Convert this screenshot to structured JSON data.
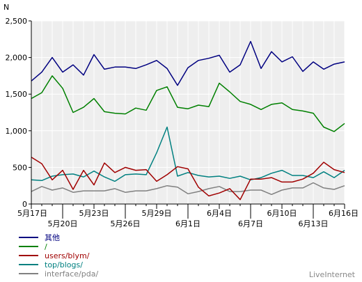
{
  "chart_data": {
    "type": "line",
    "ylabel": "N",
    "ylim": [
      0,
      2500
    ],
    "yticks": [
      0,
      500,
      1000,
      1500,
      2000,
      2500
    ],
    "ytick_labels": [
      "0",
      "500",
      "1,000",
      "1,500",
      "2,000",
      "2,500"
    ],
    "grid": true,
    "x": [
      "5月17日",
      "5月18日",
      "5月19日",
      "5月20日",
      "5月21日",
      "5月22日",
      "5月23日",
      "5月24日",
      "5月25日",
      "5月26日",
      "5月27日",
      "5月28日",
      "5月29日",
      "5月30日",
      "5月31日",
      "6月1日",
      "6月2日",
      "6月3日",
      "6月4日",
      "6月5日",
      "6月6日",
      "6月7日",
      "6月8日",
      "6月9日",
      "6月10日",
      "6月11日",
      "6月12日",
      "6月13日",
      "6月14日",
      "6月15日",
      "6月16日"
    ],
    "xtick_labels": [
      {
        "index": 0,
        "label": "5月17日",
        "row": 1
      },
      {
        "index": 3,
        "label": "5月20日",
        "row": 2
      },
      {
        "index": 6,
        "label": "5月23日",
        "row": 1
      },
      {
        "index": 9,
        "label": "5月26日",
        "row": 2
      },
      {
        "index": 12,
        "label": "5月29日",
        "row": 1
      },
      {
        "index": 15,
        "label": "6月1日",
        "row": 2
      },
      {
        "index": 18,
        "label": "6月4日",
        "row": 1
      },
      {
        "index": 21,
        "label": "6月7日",
        "row": 2
      },
      {
        "index": 24,
        "label": "6月10日",
        "row": 1
      },
      {
        "index": 27,
        "label": "6月13日",
        "row": 2
      },
      {
        "index": 30,
        "label": "6月16日",
        "row": 1
      }
    ],
    "series": [
      {
        "name": "其他",
        "color": "#000080",
        "values": [
          1680,
          1800,
          2000,
          1800,
          1900,
          1760,
          2040,
          1840,
          1870,
          1870,
          1850,
          1900,
          1960,
          1850,
          1620,
          1860,
          1960,
          1990,
          2030,
          1800,
          1900,
          2220,
          1850,
          2080,
          1940,
          2010,
          1810,
          1940,
          1840,
          1910,
          1940
        ]
      },
      {
        "name": "/",
        "color": "#008000",
        "values": [
          1440,
          1520,
          1750,
          1580,
          1250,
          1320,
          1440,
          1260,
          1240,
          1230,
          1310,
          1280,
          1550,
          1600,
          1320,
          1300,
          1350,
          1330,
          1650,
          1530,
          1400,
          1360,
          1290,
          1360,
          1380,
          1290,
          1270,
          1240,
          1050,
          990,
          1100
        ]
      },
      {
        "name": "users/blym/",
        "color": "#a00000",
        "values": [
          640,
          550,
          330,
          460,
          200,
          460,
          260,
          560,
          430,
          500,
          460,
          470,
          310,
          400,
          510,
          480,
          230,
          110,
          150,
          210,
          60,
          340,
          340,
          360,
          300,
          300,
          340,
          420,
          570,
          470,
          430
        ]
      },
      {
        "name": "top/blogs/",
        "color": "#008080",
        "values": [
          330,
          320,
          380,
          400,
          410,
          370,
          450,
          370,
          310,
          400,
          410,
          400,
          700,
          1050,
          380,
          430,
          390,
          370,
          380,
          350,
          380,
          330,
          360,
          420,
          460,
          390,
          390,
          360,
          440,
          360,
          460
        ]
      },
      {
        "name": "interface/pda/",
        "color": "#808080",
        "values": [
          170,
          240,
          190,
          220,
          160,
          180,
          180,
          180,
          210,
          160,
          180,
          180,
          210,
          250,
          230,
          140,
          170,
          210,
          240,
          170,
          170,
          190,
          190,
          130,
          190,
          220,
          220,
          290,
          220,
          200,
          250
        ]
      }
    ]
  },
  "watermark": "LiveInternet"
}
